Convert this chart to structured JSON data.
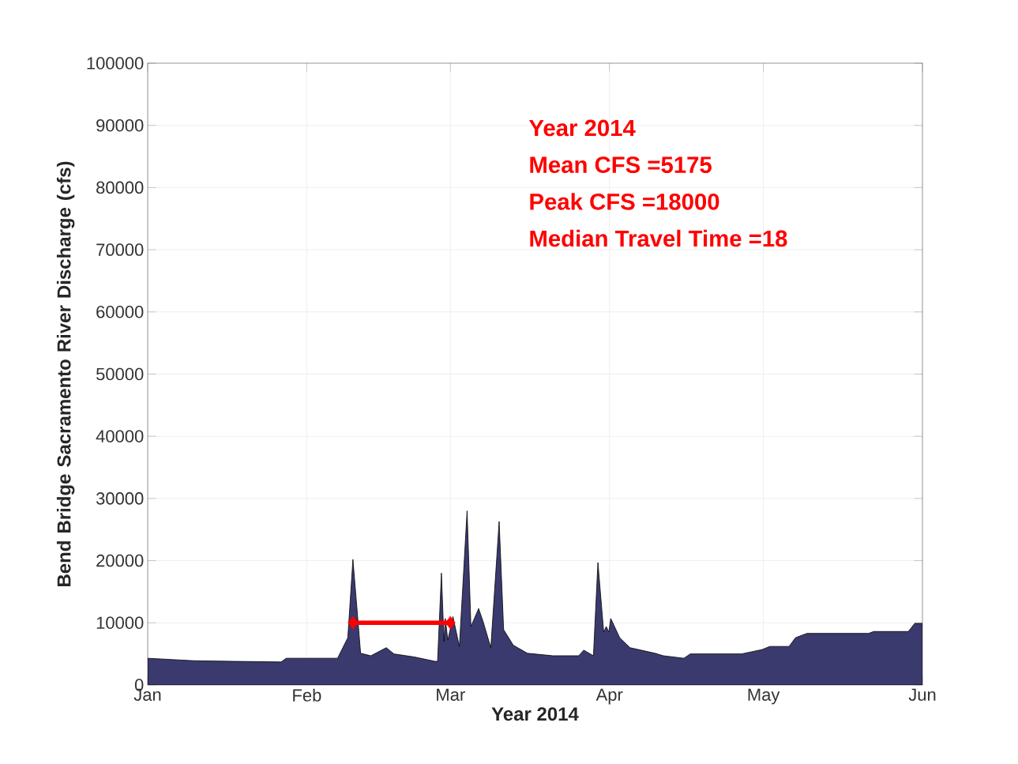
{
  "chart_data": {
    "type": "area",
    "xlabel": "Year 2014",
    "ylabel": "Bend Bridge Sacramento River Discharge (cfs)",
    "annotations": [
      "Year 2014",
      "Mean CFS =5175",
      "Peak CFS =18000",
      "Median Travel Time =18"
    ],
    "xlim": [
      "2014-01-01",
      "2014-06-01"
    ],
    "xticks": [
      {
        "value": "2014-01-01",
        "label": "Jan"
      },
      {
        "value": "2014-02-01",
        "label": "Feb"
      },
      {
        "value": "2014-03-01",
        "label": "Mar"
      },
      {
        "value": "2014-04-01",
        "label": "Apr"
      },
      {
        "value": "2014-05-01",
        "label": "May"
      },
      {
        "value": "2014-06-01",
        "label": "Jun"
      }
    ],
    "ylim": [
      0,
      100000
    ],
    "yticks": [
      0,
      10000,
      20000,
      30000,
      40000,
      50000,
      60000,
      70000,
      80000,
      90000,
      100000
    ],
    "grid": true,
    "series": [
      {
        "color": "#3a3a6e",
        "x": [
          "2014-01-01",
          "2014-01-10",
          "2014-01-18",
          "2014-01-27",
          "2014-01-28",
          "2014-02-07",
          "2014-02-09",
          "2014-02-10",
          "2014-02-11T12:00",
          "2014-02-13T12:00",
          "2014-02-16T12:00",
          "2014-02-18",
          "2014-02-22",
          "2014-02-26",
          "2014-02-26T12:00",
          "2014-02-27T06:00",
          "2014-02-27T18:00",
          "2014-02-28T00:00",
          "2014-02-28T12:00",
          "2014-03-01T12:00",
          "2014-03-02T18:00",
          "2014-03-04T06:00",
          "2014-03-05T00:00",
          "2014-03-06T12:00",
          "2014-03-07T09:00",
          "2014-03-08T21:00",
          "2014-03-10T12:00",
          "2014-03-11T09:00",
          "2014-03-13T06:00",
          "2014-03-16",
          "2014-03-21",
          "2014-03-26",
          "2014-03-27",
          "2014-03-28T21:00",
          "2014-03-29T18:00",
          "2014-03-30T21:00",
          "2014-03-31T09:00",
          "2014-03-31T21:00",
          "2014-04-01T06:00",
          "2014-04-03",
          "2014-04-05",
          "2014-04-09T21:00",
          "2014-04-11T12:00",
          "2014-04-15T12:00",
          "2014-04-16T18:00",
          "2014-04-26T18:00",
          "2014-04-30T18:00",
          "2014-05-02T06:00",
          "2014-05-06",
          "2014-05-07T06:00",
          "2014-05-09T12:00",
          "2014-05-21T12:00",
          "2014-05-22T12:00",
          "2014-05-29T06:00",
          "2014-05-30T12:00",
          "2014-06-01"
        ],
        "values": [
          4300,
          3900,
          3800,
          3700,
          4300,
          4300,
          7600,
          20200,
          5100,
          4700,
          6000,
          5000,
          4500,
          3800,
          3800,
          18000,
          7000,
          10700,
          7200,
          11000,
          6200,
          28000,
          9400,
          12300,
          10200,
          6000,
          26300,
          8900,
          6400,
          5100,
          4700,
          4700,
          5600,
          4700,
          19700,
          8500,
          9400,
          8500,
          10700,
          7600,
          6000,
          5100,
          4700,
          4300,
          5000,
          5000,
          5700,
          6200,
          6200,
          7600,
          8300,
          8300,
          8600,
          8600,
          9900,
          9900
        ]
      },
      {
        "type": "line",
        "marker": "diamond",
        "color": "#ff0000",
        "x": [
          "2014-02-10",
          "2014-03-01"
        ],
        "values": [
          10000,
          10000
        ]
      }
    ]
  }
}
